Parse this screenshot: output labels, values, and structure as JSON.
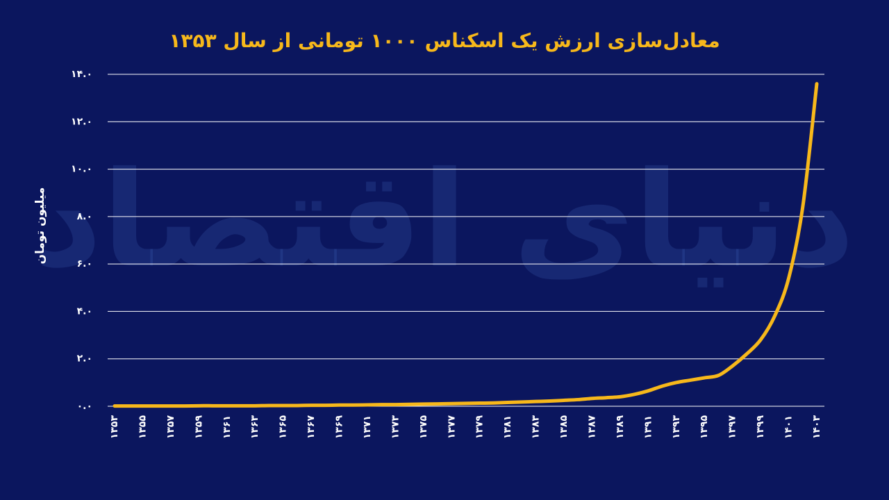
{
  "chart_data": {
    "type": "line",
    "title": "معادل‌سازی ارزش یک اسکناس ۱۰۰۰ تومانی از سال ۱۳۵۳",
    "y_label": "میلیون تومان",
    "watermark": "دنیای اقتصاد",
    "x": [
      1353,
      1354,
      1355,
      1356,
      1357,
      1358,
      1359,
      1360,
      1361,
      1362,
      1363,
      1364,
      1365,
      1366,
      1367,
      1368,
      1369,
      1370,
      1371,
      1372,
      1373,
      1374,
      1375,
      1376,
      1377,
      1378,
      1379,
      1380,
      1381,
      1382,
      1383,
      1384,
      1385,
      1386,
      1387,
      1388,
      1389,
      1390,
      1391,
      1392,
      1393,
      1394,
      1395,
      1396,
      1397,
      1398,
      1399,
      1400,
      1401,
      1402,
      1403
    ],
    "values": [
      0.01,
      0.01,
      0.01,
      0.01,
      0.01,
      0.01,
      0.02,
      0.02,
      0.02,
      0.02,
      0.02,
      0.03,
      0.03,
      0.03,
      0.04,
      0.04,
      0.05,
      0.05,
      0.06,
      0.07,
      0.07,
      0.08,
      0.09,
      0.1,
      0.11,
      0.12,
      0.13,
      0.14,
      0.16,
      0.18,
      0.2,
      0.22,
      0.25,
      0.28,
      0.33,
      0.36,
      0.4,
      0.5,
      0.65,
      0.85,
      1.0,
      1.1,
      1.2,
      1.3,
      1.7,
      2.2,
      2.8,
      3.8,
      5.4,
      8.4,
      13.6
    ],
    "color": "#f7b81b",
    "xlim": [
      1353,
      1403
    ],
    "xticks": [
      {
        "value": 1353,
        "label": "۱۳۵۳"
      },
      {
        "value": 1355,
        "label": "۱۳۵۵"
      },
      {
        "value": 1357,
        "label": "۱۳۵۷"
      },
      {
        "value": 1359,
        "label": "۱۳۵۹"
      },
      {
        "value": 1361,
        "label": "۱۳۶۱"
      },
      {
        "value": 1363,
        "label": "۱۳۶۳"
      },
      {
        "value": 1365,
        "label": "۱۳۶۵"
      },
      {
        "value": 1367,
        "label": "۱۳۶۷"
      },
      {
        "value": 1369,
        "label": "۱۳۶۹"
      },
      {
        "value": 1371,
        "label": "۱۳۷۱"
      },
      {
        "value": 1373,
        "label": "۱۳۷۳"
      },
      {
        "value": 1375,
        "label": "۱۳۷۵"
      },
      {
        "value": 1377,
        "label": "۱۳۷۷"
      },
      {
        "value": 1379,
        "label": "۱۳۷۹"
      },
      {
        "value": 1381,
        "label": "۱۳۸۱"
      },
      {
        "value": 1383,
        "label": "۱۳۸۳"
      },
      {
        "value": 1385,
        "label": "۱۳۸۵"
      },
      {
        "value": 1387,
        "label": "۱۳۸۷"
      },
      {
        "value": 1389,
        "label": "۱۳۸۹"
      },
      {
        "value": 1391,
        "label": "۱۳۹۱"
      },
      {
        "value": 1393,
        "label": "۱۳۹۳"
      },
      {
        "value": 1395,
        "label": "۱۳۹۵"
      },
      {
        "value": 1397,
        "label": "۱۳۹۷"
      },
      {
        "value": 1399,
        "label": "۱۳۹۹"
      },
      {
        "value": 1401,
        "label": "۱۴۰۱"
      },
      {
        "value": 1403,
        "label": "۱۴۰۳"
      }
    ],
    "ylim": [
      0,
      14
    ],
    "yticks": [
      {
        "value": 0,
        "label": "۰.۰"
      },
      {
        "value": 2,
        "label": "۲.۰"
      },
      {
        "value": 4,
        "label": "۴.۰"
      },
      {
        "value": 6,
        "label": "۶.۰"
      },
      {
        "value": 8,
        "label": "۸.۰"
      },
      {
        "value": 10,
        "label": "۱۰.۰"
      },
      {
        "value": 12,
        "label": "۱۲.۰"
      },
      {
        "value": 14,
        "label": "۱۴.۰"
      }
    ],
    "grid": true
  }
}
